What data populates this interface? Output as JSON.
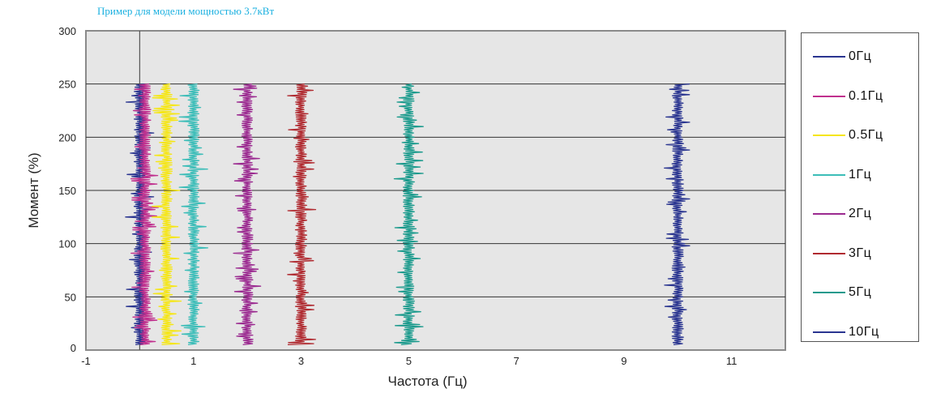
{
  "subtitle": "Пример для модели мощностью 3.7кВт",
  "chart_data": {
    "type": "line",
    "title": "",
    "subtitle": "Пример для модели мощностью 3.7кВт",
    "xlabel": "Частота (Гц)",
    "ylabel": "Момент (%)",
    "xlim": [
      -1,
      12
    ],
    "ylim": [
      0,
      300
    ],
    "xticks": [
      -1,
      1,
      3,
      5,
      7,
      9,
      11
    ],
    "yticks": [
      0,
      50,
      100,
      150,
      200,
      250,
      300
    ],
    "grid": "horizontal",
    "legend_position": "right",
    "background_color": "#e6e6e6",
    "series": [
      {
        "name": "0Гц",
        "color": "#2a3590",
        "x_center": 0.0,
        "y_range": [
          5,
          250
        ]
      },
      {
        "name": "0.1Гц",
        "color": "#c0308e",
        "x_center": 0.1,
        "y_range": [
          5,
          250
        ]
      },
      {
        "name": "0.5Гц",
        "color": "#f5e618",
        "x_center": 0.5,
        "y_range": [
          5,
          250
        ]
      },
      {
        "name": "1Гц",
        "color": "#3cbdb8",
        "x_center": 1.0,
        "y_range": [
          5,
          250
        ]
      },
      {
        "name": "2Гц",
        "color": "#9b2a90",
        "x_center": 2.0,
        "y_range": [
          5,
          250
        ]
      },
      {
        "name": "3Гц",
        "color": "#b02a30",
        "x_center": 3.0,
        "y_range": [
          5,
          250
        ]
      },
      {
        "name": "5Гц",
        "color": "#1a9a8c",
        "x_center": 5.0,
        "y_range": [
          5,
          250
        ]
      },
      {
        "name": "10Гц",
        "color": "#2a3590",
        "x_center": 10.0,
        "y_range": [
          5,
          250
        ]
      }
    ]
  }
}
